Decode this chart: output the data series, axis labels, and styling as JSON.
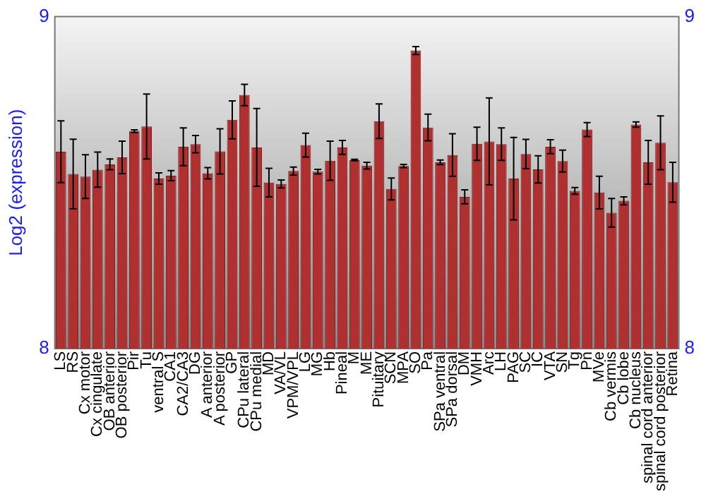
{
  "chart_data": {
    "type": "bar",
    "ylabel": "Log2 (expression)",
    "categories": [
      "LS",
      "RS",
      "Cx motor",
      "Cx cingulate",
      "OB anterior",
      "OB posterior",
      "Pir",
      "Tu",
      "ventral S",
      "CA1",
      "CA2/CA3",
      "DG",
      "A anterior",
      "A posterior",
      "GP",
      "CPu lateral",
      "CPu medial",
      "MD",
      "VA/VL",
      "VPM/VPL",
      "LG",
      "MG",
      "Hb",
      "Pineal",
      "M",
      "ME",
      "Pituitary",
      "SCN",
      "MPA",
      "SO",
      "Pa",
      "SPa ventral",
      "SPa dorsal",
      "DM",
      "VMH",
      "Arc",
      "LH",
      "PAG",
      "SC",
      "IC",
      "VTA",
      "SN",
      "Tg",
      "Pn",
      "MVe",
      "Cb vermis",
      "Cb lobe",
      "Cb nucleus",
      "spinal cord anterior",
      "spinal cord posterior",
      "Retina"
    ],
    "values": [
      8.593,
      8.526,
      8.518,
      8.539,
      8.555,
      8.576,
      8.655,
      8.669,
      8.512,
      8.521,
      8.608,
      8.616,
      8.528,
      8.594,
      8.689,
      8.764,
      8.606,
      8.5,
      8.496,
      8.535,
      8.613,
      8.533,
      8.566,
      8.606,
      8.568,
      8.551,
      8.685,
      8.481,
      8.55,
      8.898,
      8.666,
      8.561,
      8.583,
      8.457,
      8.617,
      8.624,
      8.616,
      8.512,
      8.586,
      8.54,
      8.608,
      8.565,
      8.475,
      8.66,
      8.47,
      8.409,
      8.445,
      8.675,
      8.561,
      8.62,
      8.501
    ],
    "errors": [
      0.093,
      0.105,
      0.066,
      0.053,
      0.016,
      0.049,
      0.004,
      0.098,
      0.017,
      0.015,
      0.057,
      0.026,
      0.017,
      0.068,
      0.057,
      0.032,
      0.117,
      0.043,
      0.012,
      0.012,
      0.036,
      0.007,
      0.059,
      0.021,
      0.002,
      0.01,
      0.052,
      0.033,
      0.005,
      0.012,
      0.04,
      0.007,
      0.064,
      0.021,
      0.05,
      0.131,
      0.049,
      0.124,
      0.044,
      0.041,
      0.021,
      0.033,
      0.01,
      0.021,
      0.049,
      0.043,
      0.012,
      0.008,
      0.066,
      0.081,
      0.06
    ],
    "color": "#b03030",
    "ylim": [
      8,
      9
    ],
    "yticks": [
      8,
      9
    ],
    "y2lim": [
      8,
      9
    ],
    "y2ticks": [
      8,
      9
    ],
    "grid": false,
    "legend": false
  }
}
